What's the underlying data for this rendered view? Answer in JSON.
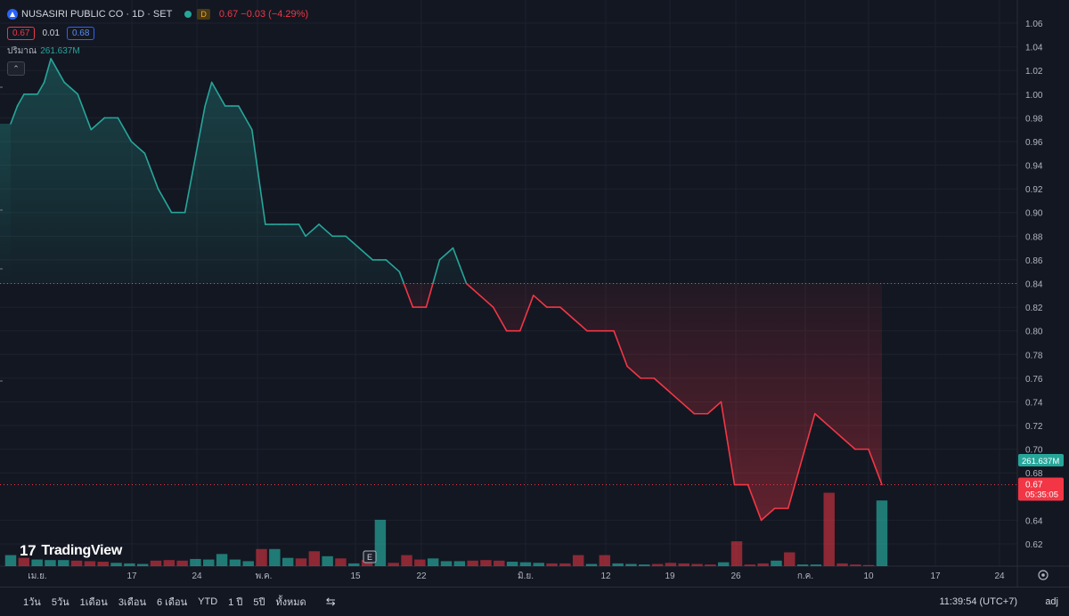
{
  "legend": {
    "symbol": "NUSASIRI PUBLIC CO · 1D · SET",
    "interval_badge": "D",
    "quote": "0.67  −0.03 (−4.29%)",
    "bid": "0.67",
    "spread": "0.01",
    "ask": "0.68",
    "volume_label": "ปริมาณ",
    "volume_value": "261.637M",
    "collapse_icon": "chevron-up-icon"
  },
  "price_axis": {
    "ticks": [
      "1.06",
      "1.04",
      "1.02",
      "1.00",
      "0.98",
      "0.96",
      "0.94",
      "0.92",
      "0.90",
      "0.88",
      "0.86",
      "0.84",
      "0.82",
      "0.80",
      "0.78",
      "0.76",
      "0.74",
      "0.72",
      "0.70",
      "0.68",
      "0.64",
      "0.62"
    ],
    "volume_tag": "261.637M",
    "price_tag": "0.67",
    "countdown": "05:35:05"
  },
  "time_axis": {
    "labels": [
      "เม.ย.",
      "17",
      "24",
      "พ.ค.",
      "15",
      "22",
      "มิ.ย.",
      "12",
      "19",
      "26",
      "ก.ค.",
      "10",
      "17",
      "24"
    ],
    "settings_icon": "gear-icon"
  },
  "earnings_marker": "E",
  "watermark": "TradingView",
  "colors": {
    "up": "#26a69a",
    "down": "#f23645",
    "background": "#131722",
    "grid": "#1e222d"
  },
  "chart_data": {
    "type": "area",
    "series": [
      {
        "values": [
          0.975,
          0.99,
          1.0,
          1.0,
          1.0,
          1.01,
          1.03,
          1.02,
          1.01,
          1.005,
          1.0,
          0.985,
          0.97,
          0.975,
          0.98,
          0.98,
          0.98,
          0.97,
          0.96,
          0.955,
          0.95,
          0.935,
          0.92,
          0.91,
          0.9,
          0.9,
          0.9,
          0.93,
          0.96,
          0.99,
          1.01,
          1.0,
          0.99,
          0.99,
          0.99,
          0.98,
          0.97,
          0.93,
          0.89,
          0.89,
          0.89,
          0.89,
          0.89,
          0.89,
          0.88,
          0.885,
          0.89,
          0.885,
          0.88,
          0.88,
          0.88,
          0.875,
          0.87,
          0.865,
          0.86,
          0.86,
          0.86,
          0.855,
          0.85,
          0.835,
          0.82,
          0.82,
          0.82,
          0.84,
          0.86,
          0.865,
          0.87,
          0.855,
          0.84,
          0.835,
          0.83,
          0.825,
          0.82,
          0.81,
          0.8,
          0.8,
          0.8,
          0.815,
          0.83,
          0.825,
          0.82,
          0.82,
          0.82,
          0.815,
          0.81,
          0.805,
          0.8,
          0.8,
          0.8,
          0.8,
          0.8,
          0.785,
          0.77,
          0.765,
          0.76,
          0.76,
          0.76,
          0.755,
          0.75,
          0.745,
          0.74,
          0.735,
          0.73,
          0.73,
          0.73,
          0.735,
          0.74,
          0.705,
          0.67,
          0.67,
          0.67,
          0.655,
          0.64,
          0.645,
          0.65,
          0.65,
          0.65,
          0.67,
          0.69,
          0.71,
          0.73,
          0.725,
          0.72,
          0.715,
          0.71,
          0.705,
          0.7,
          0.7,
          0.7,
          0.685,
          0.67
        ]
      }
    ],
    "baseline": 0.84,
    "current_price": 0.67,
    "ylim": [
      0.605,
      1.065
    ],
    "volume": [
      [
        20,
        "u"
      ],
      [
        15,
        "d"
      ],
      [
        12,
        "u"
      ],
      [
        11,
        "u"
      ],
      [
        11,
        "u"
      ],
      [
        10,
        "d"
      ],
      [
        9,
        "d"
      ],
      [
        8,
        "d"
      ],
      [
        6,
        "u"
      ],
      [
        5,
        "u"
      ],
      [
        4,
        "u"
      ],
      [
        10,
        "d"
      ],
      [
        11,
        "d"
      ],
      [
        10,
        "d"
      ],
      [
        13,
        "u"
      ],
      [
        12,
        "u"
      ],
      [
        22,
        "u"
      ],
      [
        12,
        "u"
      ],
      [
        9,
        "u"
      ],
      [
        31,
        "d"
      ],
      [
        31,
        "u"
      ],
      [
        15,
        "u"
      ],
      [
        14,
        "d"
      ],
      [
        27,
        "d"
      ],
      [
        18,
        "u"
      ],
      [
        14,
        "d"
      ],
      [
        5,
        "u"
      ],
      [
        11,
        "d"
      ],
      [
        84,
        "u"
      ],
      [
        6,
        "d"
      ],
      [
        20,
        "d"
      ],
      [
        12,
        "d"
      ],
      [
        14,
        "u"
      ],
      [
        9,
        "u"
      ],
      [
        9,
        "u"
      ],
      [
        10,
        "d"
      ],
      [
        11,
        "d"
      ],
      [
        10,
        "d"
      ],
      [
        8,
        "u"
      ],
      [
        7,
        "u"
      ],
      [
        6,
        "u"
      ],
      [
        5,
        "d"
      ],
      [
        5,
        "d"
      ],
      [
        20,
        "d"
      ],
      [
        4,
        "u"
      ],
      [
        20,
        "d"
      ],
      [
        5,
        "u"
      ],
      [
        4,
        "u"
      ],
      [
        3,
        "u"
      ],
      [
        4,
        "d"
      ],
      [
        6,
        "d"
      ],
      [
        5,
        "d"
      ],
      [
        4,
        "d"
      ],
      [
        3,
        "d"
      ],
      [
        7,
        "u"
      ],
      [
        45,
        "d"
      ],
      [
        3,
        "d"
      ],
      [
        5,
        "d"
      ],
      [
        10,
        "u"
      ],
      [
        25,
        "d"
      ],
      [
        3,
        "u"
      ],
      [
        3,
        "u"
      ],
      [
        133,
        "d"
      ],
      [
        5,
        "d"
      ],
      [
        3,
        "d"
      ],
      [
        2,
        "d"
      ],
      [
        119,
        "u"
      ]
    ]
  },
  "bottom_bar": {
    "ranges": [
      "1วัน",
      "5วัน",
      "1เดือน",
      "3เดือน",
      "6 เดือน",
      "YTD",
      "1 ปี",
      "5ปี",
      "ทั้งหมด"
    ],
    "compare_icon": "calendar-range-icon",
    "clock": "11:39:54 (UTC+7)",
    "adj": "adj"
  }
}
